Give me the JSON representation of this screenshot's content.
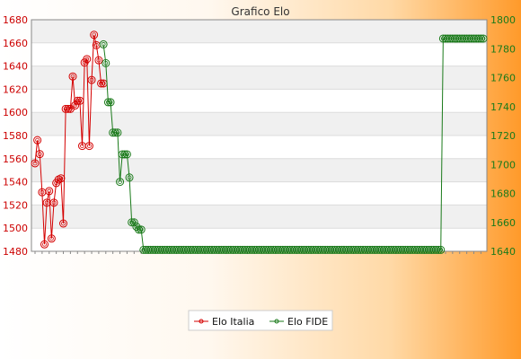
{
  "chart_data": {
    "type": "line",
    "title": "Grafico Elo",
    "xlabel": "",
    "ylabel": "",
    "grid": true,
    "legend_position": "bottom",
    "y_left": {
      "ticks": [
        1480,
        1500,
        1520,
        1540,
        1560,
        1580,
        1600,
        1620,
        1640,
        1660,
        1680
      ],
      "range": [
        1480,
        1680
      ]
    },
    "y_right": {
      "ticks": [
        1640,
        1660,
        1680,
        1700,
        1720,
        1740,
        1760,
        1780,
        1800
      ],
      "range": [
        1640,
        1800
      ]
    },
    "series": [
      {
        "name": "Elo Italia",
        "axis": "left",
        "color": "#d40000",
        "values": [
          1556,
          1576,
          1564,
          1531,
          1486,
          1522,
          1532,
          1491,
          1522,
          1539,
          1542,
          1543,
          1504,
          1603,
          1603,
          1603,
          1631,
          1606,
          1610,
          1610,
          1571,
          1643,
          1646,
          1571,
          1628,
          1667,
          1658,
          1645,
          1625,
          1625
        ]
      },
      {
        "name": "Elo FIDE",
        "axis": "right",
        "color": "#1a7a1a",
        "start_index": 29,
        "values": [
          1783,
          1770,
          1743,
          1743,
          1722,
          1722,
          1722,
          1688,
          1707,
          1707,
          1707,
          1691,
          1660,
          1660,
          1657,
          1655,
          1655,
          1641,
          1641,
          1641,
          1641,
          1641,
          1641,
          1641,
          1641,
          1641,
          1641,
          1641,
          1641,
          1641,
          1641,
          1641,
          1641,
          1641,
          1641,
          1641,
          1641,
          1641,
          1641,
          1641,
          1641,
          1641,
          1641,
          1641,
          1641,
          1641,
          1641,
          1641,
          1641,
          1641,
          1641,
          1641,
          1641,
          1641,
          1641,
          1641,
          1641,
          1641,
          1641,
          1641,
          1641,
          1641,
          1641,
          1641,
          1641,
          1641,
          1641,
          1641,
          1641,
          1641,
          1641,
          1641,
          1641,
          1641,
          1641,
          1641,
          1641,
          1641,
          1641,
          1641,
          1641,
          1641,
          1641,
          1641,
          1641,
          1641,
          1641,
          1641,
          1641,
          1641,
          1641,
          1641,
          1641,
          1641,
          1641,
          1641,
          1641,
          1641,
          1641,
          1641,
          1641,
          1641,
          1641,
          1641,
          1641,
          1641,
          1641,
          1641,
          1641,
          1641,
          1641,
          1641,
          1641,
          1641,
          1641,
          1641,
          1641,
          1641,
          1641,
          1641,
          1641,
          1641,
          1641,
          1641,
          1641,
          1641,
          1641,
          1641,
          1641,
          1641,
          1641,
          1641,
          1641,
          1641,
          1641,
          1641,
          1641,
          1641,
          1641,
          1641,
          1641,
          1641,
          1641,
          1641,
          1787,
          1787,
          1787,
          1787,
          1787,
          1787,
          1787,
          1787,
          1787,
          1787,
          1787,
          1787,
          1787,
          1787,
          1787,
          1787,
          1787,
          1787
        ]
      }
    ],
    "x_tick_labels_note": "illegible dense rotated date labels"
  }
}
